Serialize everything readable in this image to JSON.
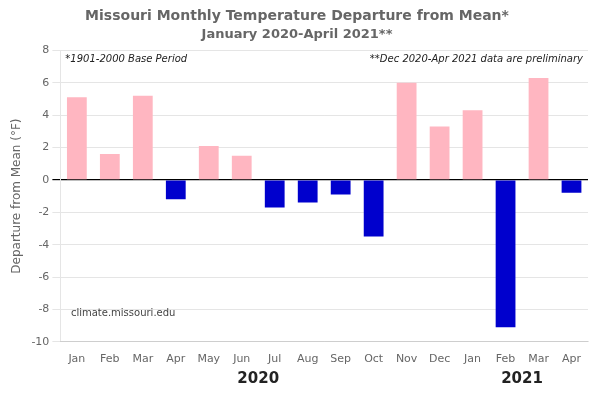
{
  "chart_data": {
    "type": "bar",
    "title": "Missouri Monthly Temperature Departure from Mean*",
    "subtitle": "January 2020-April 2021**",
    "ylabel": "Departure from Mean (°F)",
    "annotations": [
      "*1901-2000 Base Period",
      "**Dec 2020-Apr 2021 data are preliminary",
      "climate.missouri.edu"
    ],
    "x_group_labels": [
      "2020",
      "2021"
    ],
    "categories": [
      "Jan",
      "Feb",
      "Mar",
      "Apr",
      "May",
      "Jun",
      "Jul",
      "Aug",
      "Sep",
      "Oct",
      "Nov",
      "Dec",
      "Jan",
      "Feb",
      "Mar",
      "Apr"
    ],
    "values": [
      5.1,
      1.6,
      5.2,
      -1.2,
      2.1,
      1.5,
      -1.7,
      -1.4,
      -0.9,
      -3.5,
      6.0,
      3.3,
      4.3,
      -9.1,
      6.3,
      -0.8
    ],
    "colors": [
      "#FFB6C1",
      "#FFB6C1",
      "#FFB6C1",
      "#0000CD",
      "#FFB6C1",
      "#FFB6C1",
      "#0000CD",
      "#0000CD",
      "#0000CD",
      "#0000CD",
      "#FFB6C1",
      "#FFB6C1",
      "#FFB6C1",
      "#0000CD",
      "#FFB6C1",
      "#0000CD"
    ],
    "ylim": [
      -10.0,
      8.0
    ],
    "yticks": [
      -10.0,
      -8.0,
      -6.0,
      -4.0,
      -2.0,
      0.0,
      2.0,
      4.0,
      6.0,
      8.0
    ],
    "grid": true
  }
}
